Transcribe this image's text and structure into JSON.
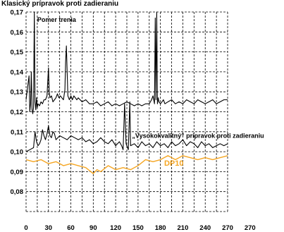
{
  "chart_data": {
    "type": "line",
    "title": "Klasický prípravok proti zadieraniu",
    "xlabel": "",
    "ylabel": "",
    "xlim": [
      0,
      270
    ],
    "ylim": [
      0.07,
      0.17
    ],
    "x_ticks": [
      "0",
      "30",
      "60",
      "90",
      "120",
      "150",
      "180",
      "210",
      "240",
      "270",
      "270"
    ],
    "y_ticks": [
      "0,17",
      "0,16",
      "0,15",
      "0,14",
      "0,13",
      "0,12",
      "0,11",
      "0,10",
      "0,09",
      "0,08"
    ],
    "grid": true,
    "annotations": [
      {
        "text": "Pomer trenia",
        "x": 15,
        "y": 0.165
      },
      {
        "text": "„Vysokokvalitný“ prípravok proti zadieraniu",
        "x": 142,
        "y": 0.107
      },
      {
        "text": "DP10",
        "x": 185,
        "y": 0.093
      }
    ],
    "series": [
      {
        "name": "",
        "color": "#000000",
        "x": [
          0,
          2,
          4,
          5,
          6,
          7,
          8,
          9,
          10,
          11,
          12,
          13,
          14,
          15,
          16,
          18,
          20,
          22,
          24,
          26,
          28,
          29,
          30,
          31,
          32,
          34,
          36,
          38,
          40,
          42,
          44,
          46,
          48,
          50,
          52,
          53,
          54,
          55,
          56,
          57,
          58,
          60,
          62,
          64,
          66,
          68,
          70,
          75,
          80,
          85,
          90,
          95,
          100,
          105,
          110,
          115,
          120,
          125,
          130,
          135,
          140,
          145,
          150,
          155,
          160,
          165,
          168,
          170,
          172,
          173,
          174,
          175,
          176,
          177,
          178,
          180,
          182,
          184,
          186,
          190,
          195,
          200,
          205,
          210,
          215,
          220,
          225,
          230,
          235,
          240,
          245,
          250,
          255,
          260,
          265,
          270
        ],
        "y": [
          0.126,
          0.132,
          0.138,
          0.12,
          0.124,
          0.14,
          0.121,
          0.119,
          0.122,
          0.17,
          0.125,
          0.121,
          0.127,
          0.122,
          0.124,
          0.123,
          0.125,
          0.124,
          0.126,
          0.126,
          0.128,
          0.135,
          0.142,
          0.13,
          0.127,
          0.128,
          0.125,
          0.126,
          0.127,
          0.129,
          0.127,
          0.128,
          0.127,
          0.126,
          0.131,
          0.145,
          0.153,
          0.14,
          0.128,
          0.127,
          0.126,
          0.128,
          0.126,
          0.128,
          0.127,
          0.126,
          0.127,
          0.125,
          0.126,
          0.124,
          0.124,
          0.125,
          0.123,
          0.124,
          0.125,
          0.123,
          0.124,
          0.123,
          0.124,
          0.125,
          0.124,
          0.123,
          0.124,
          0.123,
          0.124,
          0.124,
          0.126,
          0.128,
          0.124,
          0.167,
          0.126,
          0.17,
          0.124,
          0.127,
          0.125,
          0.124,
          0.125,
          0.126,
          0.124,
          0.125,
          0.126,
          0.124,
          0.125,
          0.124,
          0.126,
          0.125,
          0.124,
          0.126,
          0.125,
          0.124,
          0.125,
          0.126,
          0.124,
          0.125,
          0.126,
          0.126
        ]
      },
      {
        "name": "",
        "color": "#000000",
        "x": [
          0,
          5,
          10,
          12,
          14,
          16,
          18,
          20,
          22,
          24,
          26,
          28,
          30,
          32,
          34,
          36,
          38,
          40,
          45,
          50,
          55,
          60,
          65,
          70,
          75,
          80,
          85,
          90,
          95,
          100,
          105,
          110,
          115,
          120,
          125,
          128,
          130,
          132,
          134,
          135,
          137,
          139,
          140,
          145,
          150,
          155,
          160,
          165,
          170,
          175,
          180,
          185,
          190,
          195,
          200,
          205,
          210,
          215,
          220,
          225,
          230,
          235,
          240,
          245,
          250,
          255,
          260,
          265,
          270
        ],
        "y": [
          0.1,
          0.101,
          0.102,
          0.11,
          0.105,
          0.103,
          0.104,
          0.106,
          0.111,
          0.108,
          0.106,
          0.109,
          0.113,
          0.108,
          0.107,
          0.11,
          0.109,
          0.106,
          0.108,
          0.107,
          0.106,
          0.108,
          0.107,
          0.106,
          0.107,
          0.105,
          0.106,
          0.104,
          0.105,
          0.107,
          0.105,
          0.104,
          0.106,
          0.103,
          0.105,
          0.103,
          0.101,
          0.124,
          0.104,
          0.103,
          0.101,
          0.125,
          0.103,
          0.104,
          0.102,
          0.105,
          0.103,
          0.104,
          0.102,
          0.105,
          0.103,
          0.104,
          0.102,
          0.105,
          0.103,
          0.104,
          0.106,
          0.103,
          0.105,
          0.104,
          0.102,
          0.105,
          0.103,
          0.104,
          0.102,
          0.103,
          0.104,
          0.103,
          0.104
        ]
      },
      {
        "name": "DP10",
        "color": "#f5a623",
        "x": [
          0,
          10,
          20,
          30,
          40,
          50,
          60,
          70,
          80,
          90,
          95,
          100,
          110,
          120,
          130,
          140,
          150,
          160,
          170,
          180,
          190,
          200,
          210,
          220,
          230,
          240,
          250,
          260,
          270
        ],
        "y": [
          0.096,
          0.095,
          0.096,
          0.094,
          0.095,
          0.093,
          0.094,
          0.093,
          0.092,
          0.089,
          0.091,
          0.09,
          0.093,
          0.091,
          0.092,
          0.091,
          0.093,
          0.096,
          0.095,
          0.096,
          0.098,
          0.096,
          0.098,
          0.097,
          0.096,
          0.097,
          0.096,
          0.097,
          0.098
        ]
      }
    ]
  }
}
